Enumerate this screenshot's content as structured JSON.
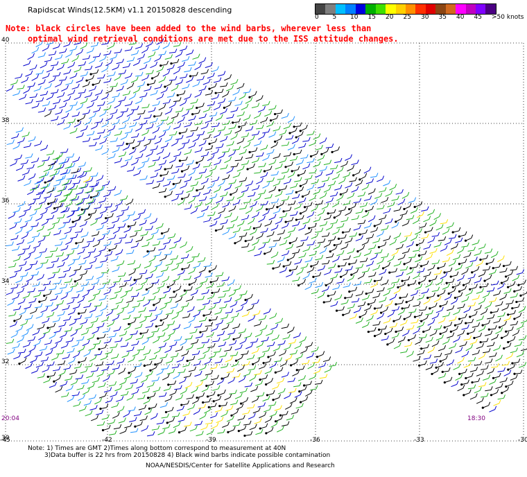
{
  "header": {
    "title": "Rapidscat Winds(12.5KM) v1.1 20150828 descending",
    "note_line1": "Note: black circles have been added to the wind barbs, wherever less than",
    "note_line2": "optimal wind retrieval conditions are met due to the ISS attitude changes."
  },
  "legend": {
    "ticks": [
      "0",
      "5",
      "10",
      "15",
      "20",
      "25",
      "30",
      "35",
      "40",
      "45",
      ">50 knots"
    ],
    "colors": [
      "#444444",
      "#7f7f7f",
      "#00bfff",
      "#0080ff",
      "#0000e0",
      "#00b000",
      "#40e000",
      "#ffff00",
      "#ffd000",
      "#ff9000",
      "#ff3000",
      "#e00000",
      "#8b4513",
      "#d2691e",
      "#ff00ff",
      "#c000c0",
      "#8000ff",
      "#4b0082"
    ]
  },
  "map": {
    "lat_labels": [
      "40",
      "38",
      "36",
      "34",
      "32",
      "30"
    ],
    "lon_labels": [
      "-45",
      "-42",
      "-39",
      "-36",
      "-33",
      "-30"
    ],
    "time_labels": [
      "20:04",
      "18:30"
    ],
    "colors": {
      "grid": "#000000",
      "barb_blue": "#0000cc",
      "barb_lightblue": "#1e90ff",
      "barb_green": "#20b020",
      "barb_yellow": "#ffe000",
      "time_label": "#800080"
    }
  },
  "footer": {
    "line1": "Note: 1) Times are GMT 2)Times along bottom correspond to measurement at 40N",
    "line2": "3)Data buffer is 22 hrs from 20150828 4) Black wind barbs indicate possible contamination",
    "line3": "NOAA/NESDIS/Center for Satellite Applications and Research"
  }
}
